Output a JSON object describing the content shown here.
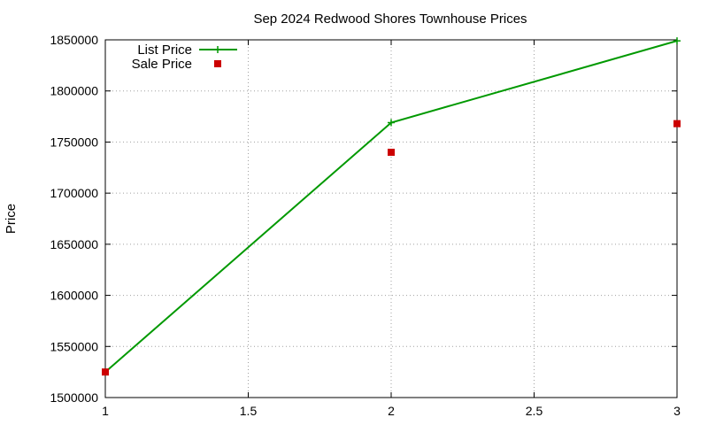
{
  "chart_data": {
    "type": "line",
    "title": "Sep 2024 Redwood Shores Townhouse Prices",
    "xlabel": "",
    "ylabel": "Price",
    "xlim": [
      1,
      3
    ],
    "ylim": [
      1500000,
      1850000
    ],
    "x_ticks": [
      {
        "value": 1,
        "label": "1"
      },
      {
        "value": 1.5,
        "label": "1.5"
      },
      {
        "value": 2,
        "label": "2"
      },
      {
        "value": 2.5,
        "label": "2.5"
      },
      {
        "value": 3,
        "label": "3"
      }
    ],
    "y_ticks": [
      {
        "value": 1500000,
        "label": "1500000"
      },
      {
        "value": 1550000,
        "label": "1550000"
      },
      {
        "value": 1600000,
        "label": "1600000"
      },
      {
        "value": 1650000,
        "label": "1650000"
      },
      {
        "value": 1700000,
        "label": "1700000"
      },
      {
        "value": 1750000,
        "label": "1750000"
      },
      {
        "value": 1800000,
        "label": "1800000"
      },
      {
        "value": 1850000,
        "label": "1850000"
      }
    ],
    "grid": true,
    "legend_position": "top-left",
    "series": [
      {
        "name": "List Price",
        "style": "line-with-plus-markers",
        "color": "#009900",
        "x": [
          1,
          2,
          3
        ],
        "y": [
          1525000,
          1769000,
          1849000
        ]
      },
      {
        "name": "Sale Price",
        "style": "square-markers",
        "color": "#cc0000",
        "x": [
          1,
          2,
          3
        ],
        "y": [
          1525000,
          1740000,
          1768000
        ]
      }
    ]
  }
}
